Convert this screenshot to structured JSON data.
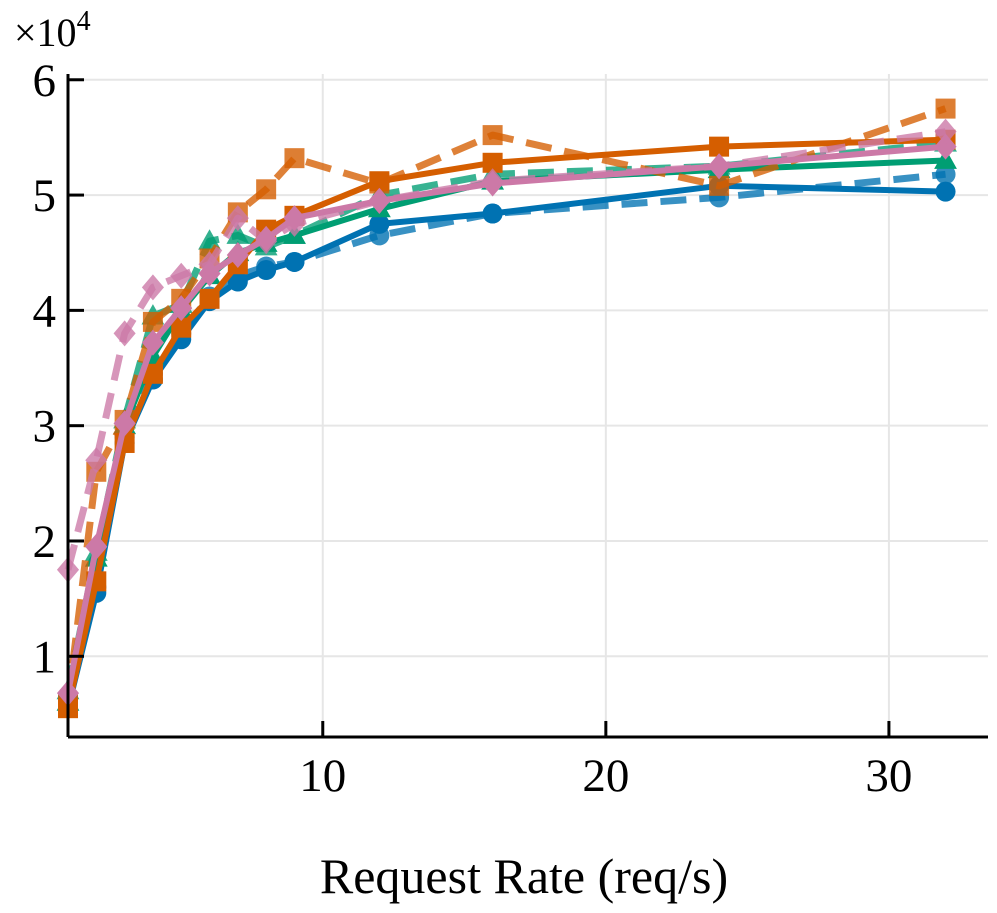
{
  "chart_data": {
    "type": "line",
    "title": "",
    "xlabel": "Request Rate (req/s)",
    "ylabel": "",
    "y_scale_label": "×10",
    "y_scale_exponent": "4",
    "xlim": [
      1,
      33.5
    ],
    "ylim": [
      0.3,
      6.05
    ],
    "y_multiplier": 10000,
    "xticks": [
      10,
      20,
      30
    ],
    "yticks": [
      1,
      2,
      3,
      4,
      5,
      6
    ],
    "xtick_labels": [
      "10",
      "20",
      "30"
    ],
    "ytick_labels": [
      "1",
      "2",
      "3",
      "4",
      "5",
      "6"
    ],
    "grid": true,
    "legend": "none",
    "x": [
      1,
      2,
      3,
      4,
      5,
      6,
      7,
      8,
      9,
      12,
      16,
      24,
      32
    ],
    "series": [
      {
        "name": "blue-solid",
        "color": "#0072B2",
        "dash": "solid",
        "marker": "circle",
        "values": [
          0.55,
          1.55,
          2.85,
          3.4,
          3.75,
          4.08,
          4.25,
          4.35,
          4.42,
          4.75,
          4.84,
          5.08,
          5.03
        ]
      },
      {
        "name": "blue-dashed",
        "color": "#0072B2",
        "dash": "dashed",
        "marker": "circle",
        "values": [
          0.65,
          1.6,
          2.9,
          3.45,
          3.8,
          4.12,
          4.3,
          4.38,
          4.42,
          4.65,
          4.84,
          4.98,
          5.18
        ]
      },
      {
        "name": "green-solid",
        "color": "#009E73",
        "dash": "solid",
        "marker": "triangle",
        "values": [
          0.6,
          1.85,
          3.0,
          3.6,
          4.0,
          4.3,
          4.5,
          4.58,
          4.65,
          4.88,
          5.12,
          5.22,
          5.3
        ]
      },
      {
        "name": "green-dashed",
        "color": "#009E73",
        "dash": "dashed",
        "marker": "triangle",
        "values": [
          0.7,
          1.9,
          3.05,
          3.95,
          4.05,
          4.6,
          4.65,
          4.55,
          4.65,
          5.0,
          5.18,
          5.25,
          5.45
        ]
      },
      {
        "name": "orange-solid",
        "color": "#D55E00",
        "dash": "solid",
        "marker": "square",
        "values": [
          0.55,
          1.65,
          2.85,
          3.45,
          3.85,
          4.1,
          4.4,
          4.7,
          4.82,
          5.12,
          5.28,
          5.42,
          5.48
        ]
      },
      {
        "name": "orange-dashed",
        "color": "#D55E00",
        "dash": "dashed",
        "marker": "square",
        "values": [
          0.6,
          2.6,
          3.05,
          3.9,
          4.1,
          4.45,
          4.85,
          5.05,
          5.32,
          5.1,
          5.52,
          5.08,
          5.75
        ]
      },
      {
        "name": "pink-solid",
        "color": "#CC79A7",
        "dash": "solid",
        "marker": "diamond",
        "values": [
          0.68,
          1.95,
          3.02,
          3.72,
          4.02,
          4.32,
          4.48,
          4.62,
          4.8,
          4.95,
          5.1,
          5.25,
          5.42
        ]
      },
      {
        "name": "pink-dashed",
        "color": "#CC79A7",
        "dash": "dashed",
        "marker": "diamond",
        "values": [
          1.75,
          2.7,
          3.8,
          4.2,
          4.3,
          4.4,
          4.8,
          4.6,
          4.75,
          4.95,
          5.12,
          5.25,
          5.55
        ]
      }
    ]
  }
}
